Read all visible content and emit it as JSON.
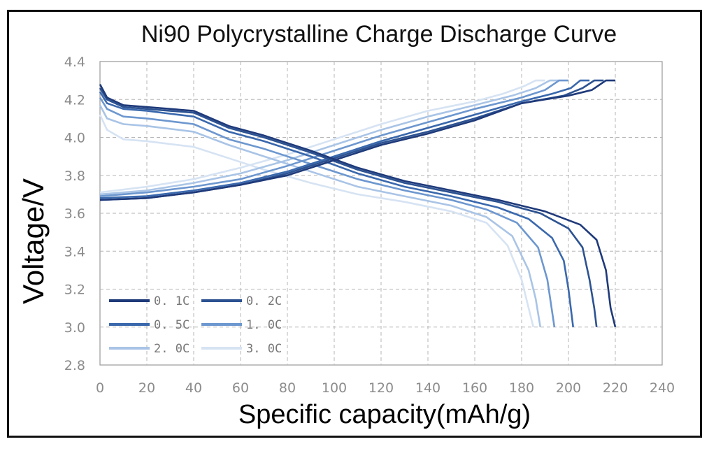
{
  "chart_data": {
    "type": "line",
    "title": "Ni90 Polycrystalline Charge Discharge Curve",
    "xlabel": "Specific capacity(mAh/g)",
    "ylabel": "Voltage/V",
    "xlim": [
      0,
      240
    ],
    "ylim": [
      2.8,
      4.4
    ],
    "xticks": [
      0,
      20,
      40,
      60,
      80,
      100,
      120,
      140,
      160,
      180,
      200,
      220,
      240
    ],
    "yticks": [
      "2.8",
      "3.0",
      "3.2",
      "3.4",
      "3.6",
      "3.8",
      "4.0",
      "4.2",
      "4.4"
    ],
    "grid": true,
    "legend_position": "bottom-left",
    "series": [
      {
        "name": "0. 1C",
        "color": "#1f3a7a",
        "charge": [
          [
            0,
            3.67
          ],
          [
            20,
            3.68
          ],
          [
            40,
            3.71
          ],
          [
            60,
            3.75
          ],
          [
            80,
            3.8
          ],
          [
            100,
            3.88
          ],
          [
            120,
            3.96
          ],
          [
            140,
            4.02
          ],
          [
            160,
            4.09
          ],
          [
            180,
            4.18
          ],
          [
            200,
            4.22
          ],
          [
            210,
            4.25
          ],
          [
            216,
            4.3
          ],
          [
            220,
            4.3
          ]
        ],
        "discharge": [
          [
            0,
            4.28
          ],
          [
            3,
            4.21
          ],
          [
            10,
            4.17
          ],
          [
            20,
            4.16
          ],
          [
            40,
            4.14
          ],
          [
            55,
            4.06
          ],
          [
            70,
            4.01
          ],
          [
            90,
            3.93
          ],
          [
            110,
            3.84
          ],
          [
            130,
            3.77
          ],
          [
            150,
            3.72
          ],
          [
            170,
            3.67
          ],
          [
            190,
            3.61
          ],
          [
            205,
            3.54
          ],
          [
            212,
            3.46
          ],
          [
            216,
            3.3
          ],
          [
            218,
            3.1
          ],
          [
            220,
            3.0
          ]
        ]
      },
      {
        "name": "0. 2C",
        "color": "#2c5291",
        "charge": [
          [
            0,
            3.67
          ],
          [
            20,
            3.68
          ],
          [
            40,
            3.71
          ],
          [
            60,
            3.75
          ],
          [
            80,
            3.81
          ],
          [
            100,
            3.89
          ],
          [
            120,
            3.97
          ],
          [
            140,
            4.03
          ],
          [
            160,
            4.1
          ],
          [
            180,
            4.18
          ],
          [
            198,
            4.22
          ],
          [
            206,
            4.26
          ],
          [
            211,
            4.3
          ],
          [
            215,
            4.3
          ]
        ],
        "discharge": [
          [
            0,
            4.26
          ],
          [
            3,
            4.2
          ],
          [
            10,
            4.16
          ],
          [
            20,
            4.15
          ],
          [
            40,
            4.13
          ],
          [
            55,
            4.05
          ],
          [
            70,
            4.0
          ],
          [
            90,
            3.92
          ],
          [
            110,
            3.83
          ],
          [
            130,
            3.76
          ],
          [
            150,
            3.71
          ],
          [
            170,
            3.66
          ],
          [
            188,
            3.6
          ],
          [
            200,
            3.52
          ],
          [
            206,
            3.42
          ],
          [
            209,
            3.25
          ],
          [
            211,
            3.1
          ],
          [
            212,
            3.0
          ]
        ]
      },
      {
        "name": "0. 5C",
        "color": "#3a68ad",
        "charge": [
          [
            0,
            3.68
          ],
          [
            20,
            3.69
          ],
          [
            40,
            3.72
          ],
          [
            60,
            3.76
          ],
          [
            80,
            3.82
          ],
          [
            100,
            3.9
          ],
          [
            120,
            3.98
          ],
          [
            140,
            4.05
          ],
          [
            160,
            4.12
          ],
          [
            180,
            4.19
          ],
          [
            193,
            4.23
          ],
          [
            201,
            4.26
          ],
          [
            205,
            4.3
          ],
          [
            209,
            4.3
          ]
        ],
        "discharge": [
          [
            0,
            4.24
          ],
          [
            3,
            4.18
          ],
          [
            10,
            4.15
          ],
          [
            20,
            4.14
          ],
          [
            40,
            4.11
          ],
          [
            55,
            4.03
          ],
          [
            70,
            3.98
          ],
          [
            90,
            3.9
          ],
          [
            110,
            3.81
          ],
          [
            130,
            3.74
          ],
          [
            150,
            3.69
          ],
          [
            170,
            3.63
          ],
          [
            183,
            3.57
          ],
          [
            193,
            3.47
          ],
          [
            198,
            3.35
          ],
          [
            200,
            3.2
          ],
          [
            202,
            3.0
          ]
        ]
      },
      {
        "name": "1. 0C",
        "color": "#6d97cf",
        "charge": [
          [
            0,
            3.69
          ],
          [
            20,
            3.71
          ],
          [
            40,
            3.74
          ],
          [
            60,
            3.78
          ],
          [
            80,
            3.85
          ],
          [
            100,
            3.93
          ],
          [
            120,
            4.01
          ],
          [
            140,
            4.08
          ],
          [
            160,
            4.15
          ],
          [
            180,
            4.21
          ],
          [
            190,
            4.25
          ],
          [
            196,
            4.3
          ],
          [
            200,
            4.3
          ]
        ],
        "discharge": [
          [
            0,
            4.21
          ],
          [
            3,
            4.15
          ],
          [
            10,
            4.11
          ],
          [
            20,
            4.1
          ],
          [
            40,
            4.07
          ],
          [
            55,
            3.99
          ],
          [
            70,
            3.94
          ],
          [
            90,
            3.86
          ],
          [
            110,
            3.78
          ],
          [
            130,
            3.72
          ],
          [
            150,
            3.67
          ],
          [
            165,
            3.62
          ],
          [
            178,
            3.55
          ],
          [
            187,
            3.42
          ],
          [
            191,
            3.25
          ],
          [
            194,
            3.0
          ]
        ]
      },
      {
        "name": "2. 0C",
        "color": "#a9c4e6",
        "charge": [
          [
            0,
            3.7
          ],
          [
            20,
            3.72
          ],
          [
            40,
            3.76
          ],
          [
            60,
            3.81
          ],
          [
            80,
            3.88
          ],
          [
            100,
            3.96
          ],
          [
            120,
            4.04
          ],
          [
            140,
            4.11
          ],
          [
            160,
            4.17
          ],
          [
            176,
            4.22
          ],
          [
            186,
            4.26
          ],
          [
            192,
            4.3
          ],
          [
            196,
            4.3
          ]
        ],
        "discharge": [
          [
            0,
            4.17
          ],
          [
            3,
            4.1
          ],
          [
            10,
            4.07
          ],
          [
            20,
            4.06
          ],
          [
            40,
            4.03
          ],
          [
            55,
            3.96
          ],
          [
            70,
            3.9
          ],
          [
            90,
            3.82
          ],
          [
            110,
            3.74
          ],
          [
            130,
            3.69
          ],
          [
            150,
            3.64
          ],
          [
            165,
            3.58
          ],
          [
            176,
            3.48
          ],
          [
            183,
            3.3
          ],
          [
            186,
            3.15
          ],
          [
            188,
            3.0
          ]
        ]
      },
      {
        "name": "3. 0C",
        "color": "#d6e3f3",
        "charge": [
          [
            0,
            3.71
          ],
          [
            20,
            3.74
          ],
          [
            40,
            3.78
          ],
          [
            60,
            3.84
          ],
          [
            80,
            3.91
          ],
          [
            100,
            3.99
          ],
          [
            120,
            4.07
          ],
          [
            140,
            4.14
          ],
          [
            160,
            4.19
          ],
          [
            172,
            4.23
          ],
          [
            181,
            4.27
          ],
          [
            186,
            4.3
          ],
          [
            190,
            4.3
          ]
        ],
        "discharge": [
          [
            0,
            4.12
          ],
          [
            3,
            4.04
          ],
          [
            10,
            3.99
          ],
          [
            20,
            3.98
          ],
          [
            40,
            3.95
          ],
          [
            55,
            3.89
          ],
          [
            70,
            3.83
          ],
          [
            90,
            3.76
          ],
          [
            110,
            3.7
          ],
          [
            130,
            3.66
          ],
          [
            150,
            3.61
          ],
          [
            165,
            3.55
          ],
          [
            174,
            3.43
          ],
          [
            180,
            3.25
          ],
          [
            183,
            3.1
          ],
          [
            185,
            3.0
          ]
        ]
      }
    ]
  }
}
